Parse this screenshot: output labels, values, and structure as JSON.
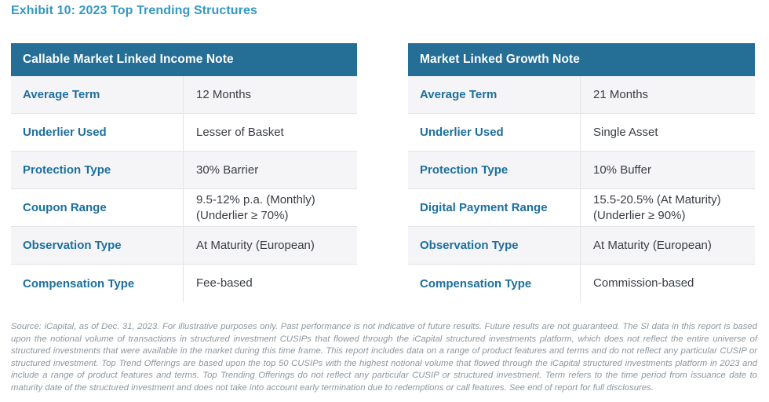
{
  "page": {
    "title": "Exhibit 10: 2023 Top Trending Structures"
  },
  "colors": {
    "title_blue": "#3398c4",
    "header_teal": "#256e96",
    "label_blue": "#1d6f9e",
    "row_alt_gray": "#f5f5f7",
    "border_gray": "#e3e4e7",
    "value_text": "#3a3e44",
    "footnote_gray": "#8d97a0"
  },
  "tables": [
    {
      "header": "Callable Market Linked Income Note",
      "rows": [
        {
          "label": "Average Term",
          "value": "12 Months"
        },
        {
          "label": "Underlier Used",
          "value": "Lesser of Basket"
        },
        {
          "label": "Protection Type",
          "value": "30% Barrier"
        },
        {
          "label": "Coupon Range",
          "value": "9.5-12% p.a. (Monthly)",
          "value2": "(Underlier ≥ 70%)"
        },
        {
          "label": "Observation Type",
          "value": "At Maturity (European)"
        },
        {
          "label": "Compensation Type",
          "value": "Fee-based"
        }
      ]
    },
    {
      "header": "Market Linked Growth Note",
      "rows": [
        {
          "label": "Average Term",
          "value": "21 Months"
        },
        {
          "label": "Underlier Used",
          "value": "Single Asset"
        },
        {
          "label": "Protection Type",
          "value": "10% Buffer"
        },
        {
          "label": "Digital Payment Range",
          "value": "15.5-20.5% (At Maturity)",
          "value2": "(Underlier ≥ 90%)"
        },
        {
          "label": "Observation Type",
          "value": "At Maturity (European)"
        },
        {
          "label": "Compensation Type",
          "value": "Commission-based"
        }
      ]
    }
  ],
  "footnote": "Source: iCapital, as of Dec. 31, 2023. For illustrative purposes only. Past performance is not indicative of future results. Future results are not guaranteed. The SI data in this report is based upon the notional volume of transactions in structured investment CUSIPs that flowed through the iCapital structured investments platform, which does not reflect the entire universe of structured investments that were available in the market during this time frame. This report includes data on a range of product features and terms and do not reflect any particular CUSIP or structured investment. Top Trend Offerings are based upon the top 50 CUSIPs with the highest notional volume that flowed through the iCapital structured investments platform in 2023 and include a range of product features and terms. Top Trending Offerings do not reflect any particular CUSIP or structured investment. Term refers to the time period from issuance date to maturity date of the structured investment and does not take into account early termination due to redemptions or call features. See end of report for full disclosures."
}
